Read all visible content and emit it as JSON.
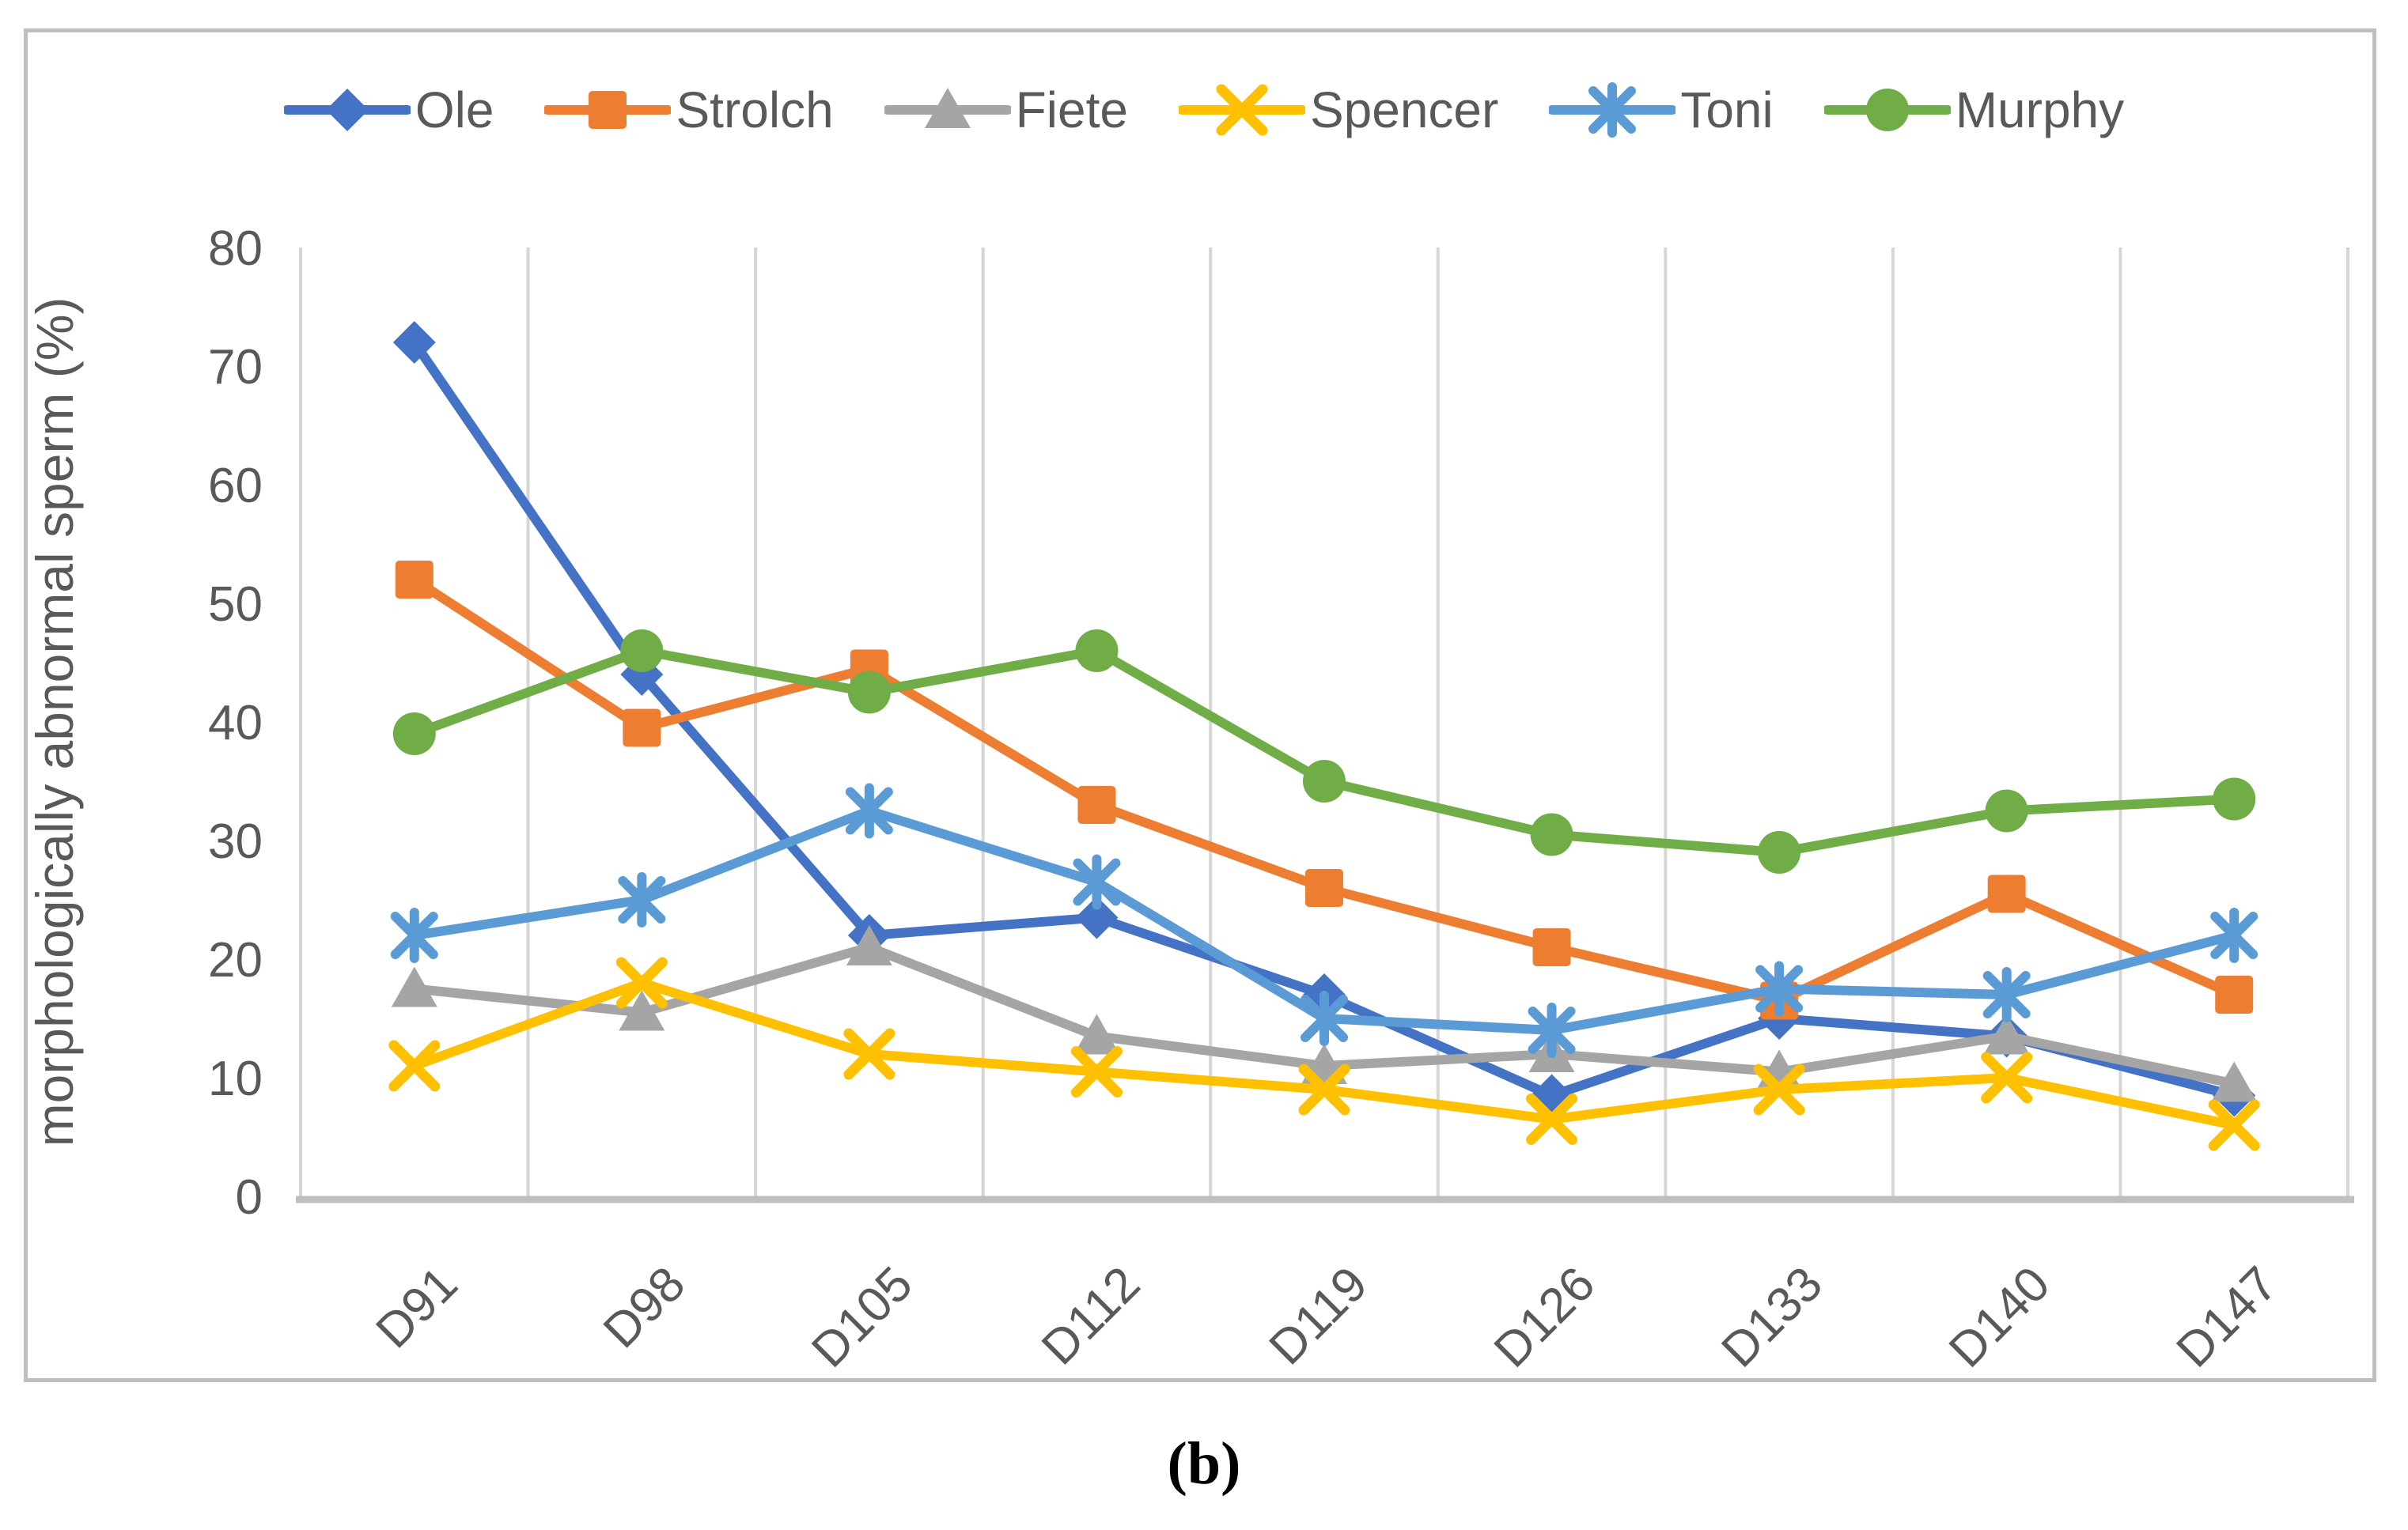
{
  "figure": {
    "caption": "(b)"
  },
  "style": {
    "border_color": "#bfbfbf",
    "gridline_color": "#d6d6d6",
    "axis_line_color": "#bfbfbf",
    "text_color": "#595959"
  },
  "chart_data": {
    "type": "line",
    "title": "",
    "xlabel": "",
    "ylabel": "morphologically abnormal sperm (%)",
    "ylim": [
      0,
      80
    ],
    "yticks": [
      0,
      10,
      20,
      30,
      40,
      50,
      60,
      70,
      80
    ],
    "grid": "vertical-only",
    "legend_position": "top",
    "categories": [
      "D91",
      "D98",
      "D105",
      "D112",
      "D119",
      "D126",
      "D133",
      "D140",
      "D147"
    ],
    "series": [
      {
        "name": "Ole",
        "color": "#4472C4",
        "marker": "diamond",
        "values": [
          72,
          44,
          22,
          23.5,
          17,
          8.5,
          15,
          13.5,
          8.5
        ]
      },
      {
        "name": "Strolch",
        "color": "#ED7D31",
        "marker": "square",
        "values": [
          52,
          39.5,
          44.5,
          33,
          26,
          21,
          16.5,
          25.5,
          17
        ]
      },
      {
        "name": "Fiete",
        "color": "#A5A5A5",
        "marker": "triangle",
        "values": [
          17.5,
          15.5,
          21,
          13.5,
          11,
          12,
          10.5,
          13.5,
          9.5
        ]
      },
      {
        "name": "Spencer",
        "color": "#FFC000",
        "marker": "x",
        "values": [
          11,
          18,
          12,
          10.5,
          9,
          6.5,
          9,
          10,
          6
        ]
      },
      {
        "name": "Toni",
        "color": "#5B9BD5",
        "marker": "asterisk",
        "values": [
          22,
          25,
          32.5,
          26.5,
          15,
          14,
          17.5,
          17,
          22
        ]
      },
      {
        "name": "Murphy",
        "color": "#70AD47",
        "marker": "circle",
        "values": [
          39,
          46,
          42.5,
          46,
          35,
          30.5,
          29,
          32.5,
          33.5
        ]
      }
    ]
  }
}
